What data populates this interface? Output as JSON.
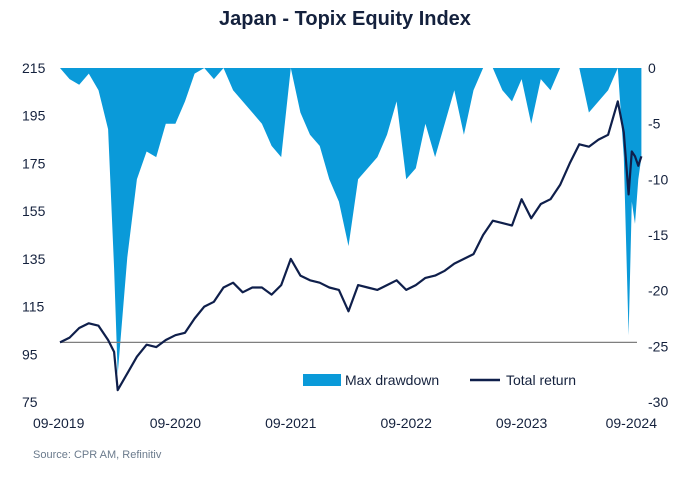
{
  "title": "Japan - Topix Equity Index",
  "source": "Source: CPR AM, Refinitiv",
  "colors": {
    "drawdown": "#0a9ad9",
    "total_return": "#0f1f4b",
    "baseline": "#7f7f7f",
    "text": "#14213d"
  },
  "chart_data": {
    "type": "line",
    "title": "Japan - Topix Equity Index",
    "x_ticks": [
      "09-2019",
      "09-2020",
      "09-2021",
      "09-2022",
      "09-2023",
      "09-2024"
    ],
    "left_axis": {
      "ticks": [
        215,
        195,
        175,
        155,
        135,
        115,
        95,
        75
      ],
      "ylim": [
        75,
        215
      ]
    },
    "right_axis": {
      "ticks": [
        0,
        -5,
        -10,
        -15,
        -20,
        -25,
        -30
      ],
      "ylim": [
        -30,
        0
      ]
    },
    "reference_line": {
      "axis": "left",
      "value": 100
    },
    "legend": {
      "placement": "bottom-right",
      "entries": [
        "Max drawdown",
        "Total return"
      ]
    },
    "series": [
      {
        "name": "Max drawdown",
        "axis": "right",
        "style": "area",
        "points": [
          [
            "2019-09",
            0
          ],
          [
            "2019-10",
            -1
          ],
          [
            "2019-11",
            -1.5
          ],
          [
            "2019-12",
            -0.5
          ],
          [
            "2020-01",
            -2
          ],
          [
            "2020-02",
            -5.5
          ],
          [
            "2020-02-20",
            -18
          ],
          [
            "2020-03",
            -27.5
          ],
          [
            "2020-04",
            -17
          ],
          [
            "2020-05",
            -10
          ],
          [
            "2020-06",
            -7.5
          ],
          [
            "2020-07",
            -8
          ],
          [
            "2020-08",
            -5
          ],
          [
            "2020-09",
            -5
          ],
          [
            "2020-10",
            -3
          ],
          [
            "2020-11",
            -0.5
          ],
          [
            "2020-12",
            0
          ],
          [
            "2021-01",
            -1
          ],
          [
            "2021-02",
            0
          ],
          [
            "2021-03",
            -2
          ],
          [
            "2021-04",
            -3
          ],
          [
            "2021-05",
            -4
          ],
          [
            "2021-06",
            -5
          ],
          [
            "2021-07",
            -7
          ],
          [
            "2021-08",
            -8
          ],
          [
            "2021-09",
            0
          ],
          [
            "2021-10",
            -4
          ],
          [
            "2021-11",
            -6
          ],
          [
            "2021-12",
            -7
          ],
          [
            "2022-01",
            -10
          ],
          [
            "2022-02",
            -12
          ],
          [
            "2022-03",
            -16
          ],
          [
            "2022-04",
            -10
          ],
          [
            "2022-05",
            -9
          ],
          [
            "2022-06",
            -8
          ],
          [
            "2022-07",
            -6
          ],
          [
            "2022-08",
            -3
          ],
          [
            "2022-09",
            -10
          ],
          [
            "2022-10",
            -9
          ],
          [
            "2022-11",
            -5
          ],
          [
            "2022-12",
            -8
          ],
          [
            "2023-01",
            -5
          ],
          [
            "2023-02",
            -2
          ],
          [
            "2023-03",
            -6
          ],
          [
            "2023-04",
            -2
          ],
          [
            "2023-05",
            0
          ],
          [
            "2023-06",
            0
          ],
          [
            "2023-07",
            -2
          ],
          [
            "2023-08",
            -3
          ],
          [
            "2023-09",
            -1
          ],
          [
            "2023-10",
            -5
          ],
          [
            "2023-11",
            -1
          ],
          [
            "2023-12",
            -2
          ],
          [
            "2024-01",
            0
          ],
          [
            "2024-02",
            0
          ],
          [
            "2024-03",
            0
          ],
          [
            "2024-04",
            -4
          ],
          [
            "2024-05",
            -3
          ],
          [
            "2024-06",
            -2
          ],
          [
            "2024-07",
            0
          ],
          [
            "2024-07-20",
            -8
          ],
          [
            "2024-08-05",
            -24
          ],
          [
            "2024-08-15",
            -12
          ],
          [
            "2024-08-25",
            -14
          ],
          [
            "2024-09-05",
            -10
          ],
          [
            "2024-09-15",
            -8
          ]
        ]
      },
      {
        "name": "Total return",
        "axis": "left",
        "style": "line",
        "points": [
          [
            "2019-09",
            100
          ],
          [
            "2019-10",
            102
          ],
          [
            "2019-11",
            106
          ],
          [
            "2019-12",
            108
          ],
          [
            "2020-01",
            107
          ],
          [
            "2020-02",
            101
          ],
          [
            "2020-02-20",
            96
          ],
          [
            "2020-03",
            80
          ],
          [
            "2020-04",
            87
          ],
          [
            "2020-05",
            94
          ],
          [
            "2020-06",
            99
          ],
          [
            "2020-07",
            98
          ],
          [
            "2020-08",
            101
          ],
          [
            "2020-09",
            103
          ],
          [
            "2020-10",
            104
          ],
          [
            "2020-11",
            110
          ],
          [
            "2020-12",
            115
          ],
          [
            "2021-01",
            117
          ],
          [
            "2021-02",
            123
          ],
          [
            "2021-03",
            125
          ],
          [
            "2021-04",
            121
          ],
          [
            "2021-05",
            123
          ],
          [
            "2021-06",
            123
          ],
          [
            "2021-07",
            120
          ],
          [
            "2021-08",
            124
          ],
          [
            "2021-09",
            135
          ],
          [
            "2021-10",
            128
          ],
          [
            "2021-11",
            126
          ],
          [
            "2021-12",
            125
          ],
          [
            "2022-01",
            123
          ],
          [
            "2022-02",
            122
          ],
          [
            "2022-03",
            113
          ],
          [
            "2022-04",
            124
          ],
          [
            "2022-05",
            123
          ],
          [
            "2022-06",
            122
          ],
          [
            "2022-07",
            124
          ],
          [
            "2022-08",
            126
          ],
          [
            "2022-09",
            122
          ],
          [
            "2022-10",
            124
          ],
          [
            "2022-11",
            127
          ],
          [
            "2022-12",
            128
          ],
          [
            "2023-01",
            130
          ],
          [
            "2023-02",
            133
          ],
          [
            "2023-03",
            135
          ],
          [
            "2023-04",
            137
          ],
          [
            "2023-05",
            145
          ],
          [
            "2023-06",
            151
          ],
          [
            "2023-07",
            150
          ],
          [
            "2023-08",
            149
          ],
          [
            "2023-09",
            160
          ],
          [
            "2023-10",
            152
          ],
          [
            "2023-11",
            158
          ],
          [
            "2023-12",
            160
          ],
          [
            "2024-01",
            166
          ],
          [
            "2024-02",
            175
          ],
          [
            "2024-03",
            183
          ],
          [
            "2024-04",
            182
          ],
          [
            "2024-05",
            185
          ],
          [
            "2024-06",
            187
          ],
          [
            "2024-07",
            201
          ],
          [
            "2024-07-20",
            188
          ],
          [
            "2024-08-05",
            162
          ],
          [
            "2024-08-15",
            180
          ],
          [
            "2024-08-25",
            178
          ],
          [
            "2024-09-05",
            174
          ],
          [
            "2024-09-15",
            178
          ]
        ]
      }
    ]
  }
}
